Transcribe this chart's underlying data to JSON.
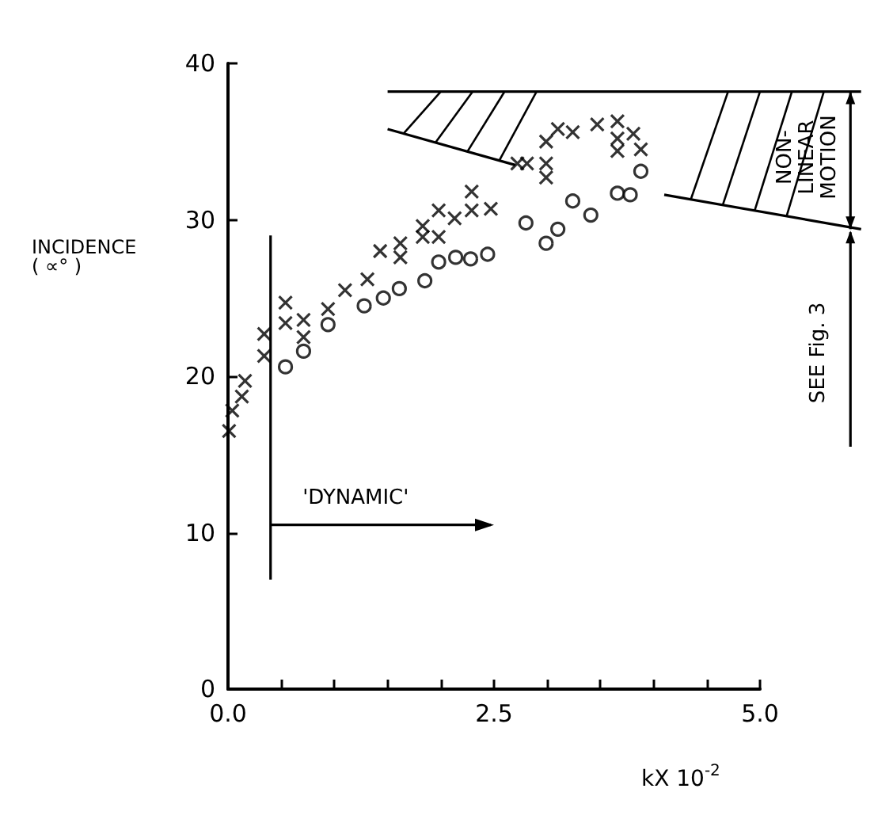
{
  "chart_data": {
    "type": "scatter",
    "xlabel": "kX 10$^{-2}$",
    "ylabel": "INCIDENCE\n( ∝° )",
    "xlim": [
      0,
      5.0
    ],
    "ylim": [
      0,
      40
    ],
    "xticks": [
      {
        "value": 0,
        "label": "0.0"
      },
      {
        "value": 0.5,
        "label": null
      },
      {
        "value": 1,
        "label": null
      },
      {
        "value": 1.5,
        "label": null
      },
      {
        "value": 2,
        "label": null
      },
      {
        "value": 2.5,
        "label": "2.5"
      },
      {
        "value": 3,
        "label": null
      },
      {
        "value": 3.5,
        "label": null
      },
      {
        "value": 4,
        "label": null
      },
      {
        "value": 4.5,
        "label": null
      },
      {
        "value": 5,
        "label": "5.0"
      }
    ],
    "yticks": [
      0,
      10,
      20,
      30,
      40
    ],
    "grid": false,
    "ref_lines": [
      {
        "axis": "y",
        "value": 38.2
      }
    ],
    "annotations": [
      "'DYNAMIC'",
      "NON-\nLINEAR\nMOTION",
      "SEE Fig. 3"
    ],
    "series": [
      {
        "marker": "circle",
        "color": "#000000",
        "x": [
          0.54,
          0.71,
          0.94,
          1.28,
          1.46,
          1.61,
          1.85,
          1.98,
          2.14,
          2.28,
          2.44,
          2.8,
          2.99,
          3.1,
          3.24,
          3.41,
          3.66,
          3.78,
          3.88
        ],
        "values": [
          20.6,
          21.6,
          23.3,
          24.5,
          25.0,
          25.6,
          26.1,
          27.3,
          27.6,
          27.5,
          27.8,
          29.8,
          28.5,
          29.4,
          31.2,
          30.3,
          31.7,
          31.6,
          33.1
        ]
      },
      {
        "marker": "cross",
        "color": "#000000",
        "x": [
          0.01,
          0.04,
          0.13,
          0.16,
          0.34,
          0.34,
          0.54,
          0.54,
          0.71,
          0.71,
          0.94,
          1.1,
          1.31,
          1.43,
          1.62,
          1.62,
          1.83,
          1.83,
          1.98,
          1.98,
          2.13,
          2.29,
          2.29,
          2.47,
          2.72,
          2.81,
          2.99,
          2.99,
          2.99,
          3.1,
          3.24,
          3.47,
          3.66,
          3.66,
          3.66,
          3.81,
          3.88
        ],
        "values": [
          16.5,
          17.8,
          18.7,
          19.7,
          22.7,
          21.3,
          24.7,
          23.4,
          23.6,
          22.5,
          24.3,
          25.5,
          26.2,
          28.0,
          28.5,
          27.6,
          29.6,
          28.9,
          30.6,
          28.9,
          30.1,
          31.8,
          30.6,
          30.7,
          33.6,
          33.6,
          35.0,
          33.6,
          32.7,
          35.8,
          35.6,
          36.1,
          36.3,
          35.2,
          34.4,
          35.5,
          34.5
        ]
      }
    ]
  }
}
